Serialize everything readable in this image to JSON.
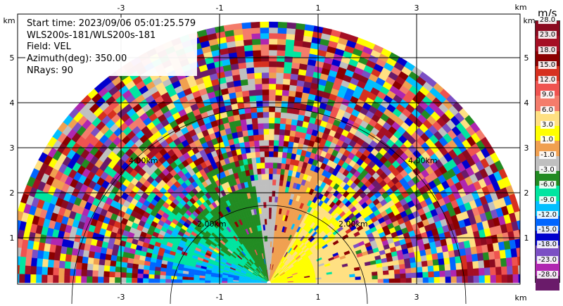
{
  "info": {
    "start_time": "Start time: 2023/09/06 05:01:25.579",
    "site": "WLS200s-181/WLS200s-181",
    "field": "Field: VEL",
    "azimuth": "Azimuth(deg): 350.00",
    "nrays": "NRays: 90"
  },
  "axes": {
    "x_ticks": [
      "-3",
      "-1",
      "1",
      "3"
    ],
    "y_ticks": [
      "1",
      "2",
      "3",
      "4",
      "5"
    ],
    "unit": "km"
  },
  "rings": {
    "inner_label": "2.00km",
    "outer_label": "4.00km"
  },
  "colorbar": {
    "unit": "m/s",
    "labels": [
      "28.0",
      "23.0",
      "18.0",
      "15.0",
      "12.0",
      "9.0",
      "6.0",
      "3.0",
      "1.0",
      "-1.0",
      "-3.0",
      "-6.0",
      "-9.0",
      "-12.0",
      "-15.0",
      "-18.0",
      "-23.0",
      "-28.0"
    ],
    "colors": [
      "#8b0a1f",
      "#a50f24",
      "#8b0000",
      "#d7301f",
      "#ef5350",
      "#f47c6b",
      "#ffe082",
      "#ffff00",
      "#f0a050",
      "#bfbfbf",
      "#228b22",
      "#00e5a0",
      "#00bfff",
      "#0066ff",
      "#0000cd",
      "#7b4fc4",
      "#b026b0",
      "#6a1b6a"
    ]
  }
}
